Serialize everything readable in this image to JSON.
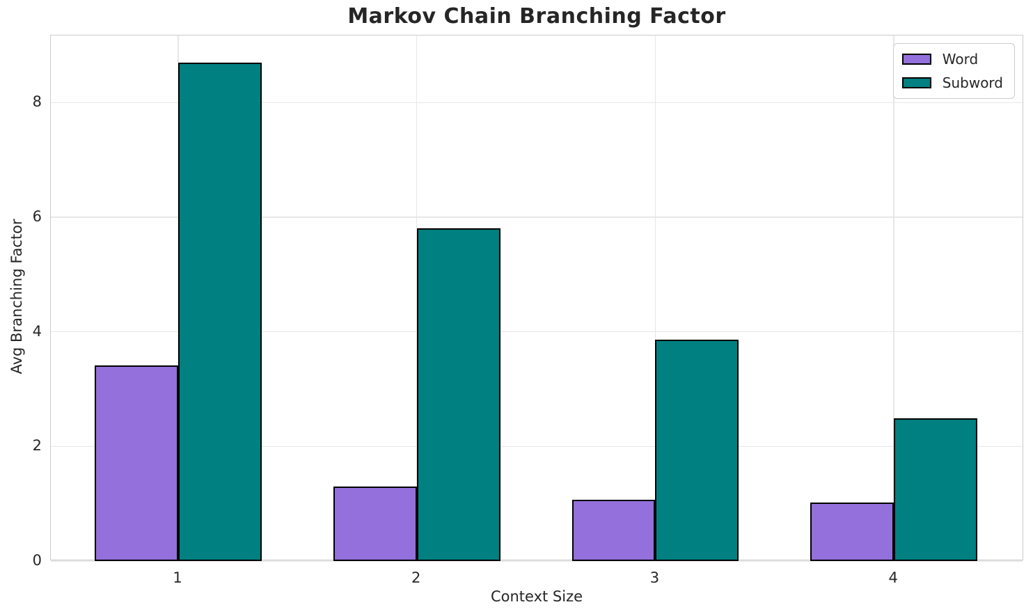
{
  "chart_data": {
    "type": "bar",
    "title": "Markov Chain Branching Factor",
    "xlabel": "Context Size",
    "ylabel": "Avg Branching Factor",
    "categories": [
      1,
      2,
      3,
      4
    ],
    "series": [
      {
        "name": "Word",
        "color": "#9370DB",
        "values": [
          3.41,
          1.3,
          1.07,
          1.02
        ]
      },
      {
        "name": "Subword",
        "color": "#008080",
        "values": [
          8.7,
          5.81,
          3.86,
          2.49
        ]
      }
    ],
    "bar_width": 0.35,
    "xlim": [
      0.466,
      4.545
    ],
    "ylim": [
      0,
      9.17
    ],
    "yticks": [
      0,
      2,
      4,
      6,
      8
    ],
    "grid": true,
    "legend_position": "upper right",
    "bar_edge_color": "#000000",
    "grid_color": "#e7e7e7",
    "spine_color": "#cccccc",
    "text_color": "#262626",
    "background_color": "#ffffff"
  }
}
